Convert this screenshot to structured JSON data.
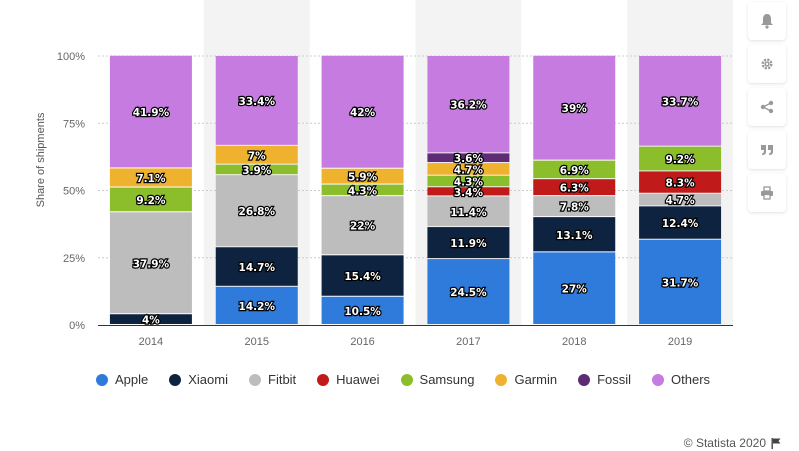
{
  "chart_data": {
    "type": "bar",
    "stacked": true,
    "ylabel": "Share of shipments",
    "xlabel": "",
    "ylim": [
      0,
      100
    ],
    "yticks": [
      "0%",
      "25%",
      "50%",
      "75%",
      "100%"
    ],
    "categories": [
      "2014",
      "2015",
      "2016",
      "2017",
      "2018",
      "2019"
    ],
    "series": [
      {
        "name": "Apple",
        "color": "#2e7bdc",
        "values": [
          null,
          14.2,
          10.5,
          24.5,
          27,
          31.7
        ],
        "labels": [
          null,
          "14.2%",
          "10.5%",
          "24.5%",
          "27%",
          "31.7%"
        ]
      },
      {
        "name": "Xiaomi",
        "color": "#0e2340",
        "values": [
          4,
          14.7,
          15.4,
          11.9,
          13.1,
          12.4
        ],
        "labels": [
          "4%",
          "14.7%",
          "15.4%",
          "11.9%",
          "13.1%",
          "12.4%"
        ]
      },
      {
        "name": "Fitbit",
        "color": "#bdbdbd",
        "values": [
          37.9,
          26.8,
          22,
          11.4,
          7.8,
          4.7
        ],
        "labels": [
          "37.9%",
          "26.8%",
          "22%",
          "11.4%",
          "7.8%",
          "4.7%"
        ]
      },
      {
        "name": "Huawei",
        "color": "#c01a1a",
        "values": [
          null,
          null,
          null,
          3.4,
          6.3,
          8.3
        ],
        "labels": [
          null,
          null,
          null,
          "3.4%",
          "6.3%",
          "8.3%"
        ]
      },
      {
        "name": "Samsung",
        "color": "#8cbd2b",
        "values": [
          9.2,
          3.9,
          4.3,
          4.3,
          6.9,
          9.2
        ],
        "labels": [
          "9.2%",
          "3.9%",
          "4.3%",
          "4.3%",
          "6.9%",
          "9.2%"
        ]
      },
      {
        "name": "Garmin",
        "color": "#efb22e",
        "values": [
          7.1,
          7,
          5.9,
          4.7,
          null,
          null
        ],
        "labels": [
          "7.1%",
          "7%",
          "5.9%",
          "4.7%",
          null,
          null
        ]
      },
      {
        "name": "Fossil",
        "color": "#5e2c75",
        "values": [
          null,
          null,
          null,
          3.6,
          null,
          null
        ],
        "labels": [
          null,
          null,
          null,
          "3.6%",
          null,
          null
        ]
      },
      {
        "name": "Others",
        "color": "#c57be0",
        "values": [
          41.9,
          33.4,
          42,
          36.2,
          39,
          33.7
        ],
        "labels": [
          "41.9%",
          "33.4%",
          "42%",
          "36.2%",
          "39%",
          "33.7%"
        ]
      }
    ]
  },
  "credit": {
    "text": "© Statista 2020"
  },
  "toolbar": {
    "buttons": [
      {
        "name": "notification-button",
        "icon": "bell-icon"
      },
      {
        "name": "settings-button",
        "icon": "gear-icon"
      },
      {
        "name": "share-button",
        "icon": "share-icon"
      },
      {
        "name": "cite-button",
        "icon": "quote-icon"
      },
      {
        "name": "print-button",
        "icon": "print-icon"
      }
    ]
  },
  "colors": {
    "background_band": "#f3f3f3",
    "gridline": "#cccccc",
    "axis": "#333333",
    "icon": "#999999"
  }
}
